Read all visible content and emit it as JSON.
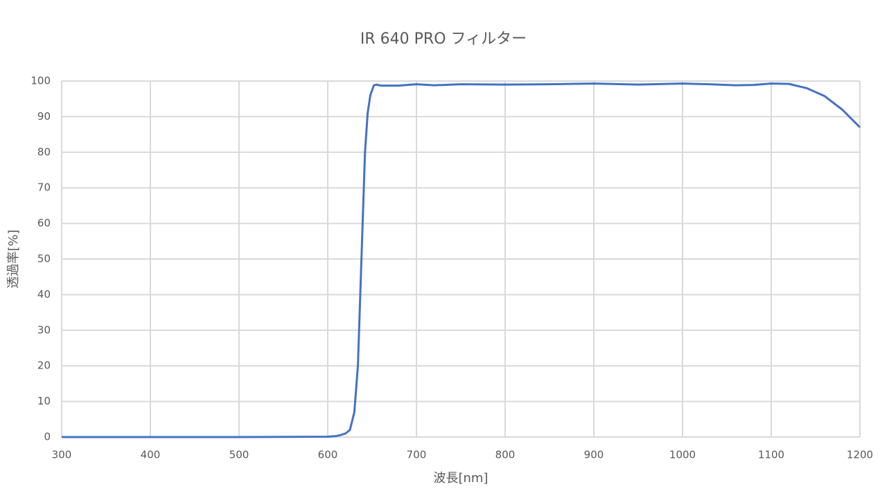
{
  "chart_data": {
    "type": "line",
    "title": "IR 640 PRO フィルター",
    "x_label": "波長[nm]",
    "y_label": "透過率[%]",
    "x": [
      300,
      400,
      500,
      600,
      610,
      615,
      620,
      625,
      630,
      634,
      638,
      642,
      645,
      648,
      652,
      655,
      660,
      680,
      700,
      720,
      750,
      800,
      850,
      900,
      950,
      1000,
      1030,
      1060,
      1080,
      1100,
      1120,
      1140,
      1160,
      1180,
      1200
    ],
    "series": [
      {
        "name": "IR 640 PRO",
        "color": "#4472c4",
        "values": [
          0,
          0,
          0,
          0.1,
          0.3,
          0.6,
          1,
          2,
          7,
          20,
          50,
          80,
          91,
          96,
          98.8,
          99,
          98.7,
          98.7,
          99.1,
          98.8,
          99.1,
          99.0,
          99.1,
          99.3,
          99.0,
          99.3,
          99.1,
          98.8,
          98.9,
          99.3,
          99.2,
          98,
          95.8,
          92,
          87
        ]
      }
    ],
    "xlim": [
      300,
      1200
    ],
    "ylim": [
      0,
      100
    ],
    "xticks": [
      300,
      400,
      500,
      600,
      700,
      800,
      900,
      1000,
      1100,
      1200
    ],
    "yticks": [
      0,
      10,
      20,
      30,
      40,
      50,
      60,
      70,
      80,
      90,
      100
    ],
    "grid": true
  }
}
